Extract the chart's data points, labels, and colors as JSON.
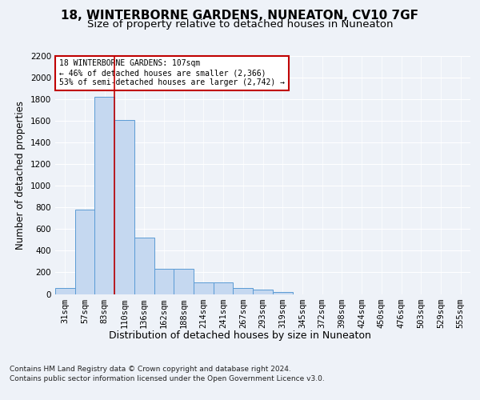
{
  "title1": "18, WINTERBORNE GARDENS, NUNEATON, CV10 7GF",
  "title2": "Size of property relative to detached houses in Nuneaton",
  "xlabel": "Distribution of detached houses by size in Nuneaton",
  "ylabel": "Number of detached properties",
  "categories": [
    "31sqm",
    "57sqm",
    "83sqm",
    "110sqm",
    "136sqm",
    "162sqm",
    "188sqm",
    "214sqm",
    "241sqm",
    "267sqm",
    "293sqm",
    "319sqm",
    "345sqm",
    "372sqm",
    "398sqm",
    "424sqm",
    "450sqm",
    "476sqm",
    "503sqm",
    "529sqm",
    "555sqm"
  ],
  "values": [
    55,
    780,
    1820,
    1610,
    525,
    235,
    235,
    105,
    105,
    55,
    40,
    20,
    0,
    0,
    0,
    0,
    0,
    0,
    0,
    0,
    0
  ],
  "bar_color": "#c5d8f0",
  "bar_edge_color": "#5b9bd5",
  "vline_x": 2.5,
  "vline_color": "#c00000",
  "annotation_line1": "18 WINTERBORNE GARDENS: 107sqm",
  "annotation_line2": "← 46% of detached houses are smaller (2,366)",
  "annotation_line3": "53% of semi-detached houses are larger (2,742) →",
  "annotation_box_color": "white",
  "annotation_box_edge": "#c00000",
  "ylim": [
    0,
    2200
  ],
  "yticks": [
    0,
    200,
    400,
    600,
    800,
    1000,
    1200,
    1400,
    1600,
    1800,
    2000,
    2200
  ],
  "footer_line1": "Contains HM Land Registry data © Crown copyright and database right 2024.",
  "footer_line2": "Contains public sector information licensed under the Open Government Licence v3.0.",
  "bg_color": "#eef2f8",
  "plot_bg_color": "#eef2f8",
  "grid_color": "#ffffff",
  "title1_fontsize": 11,
  "title2_fontsize": 9.5,
  "xlabel_fontsize": 9,
  "ylabel_fontsize": 8.5,
  "tick_fontsize": 7.5,
  "footer_fontsize": 6.5
}
